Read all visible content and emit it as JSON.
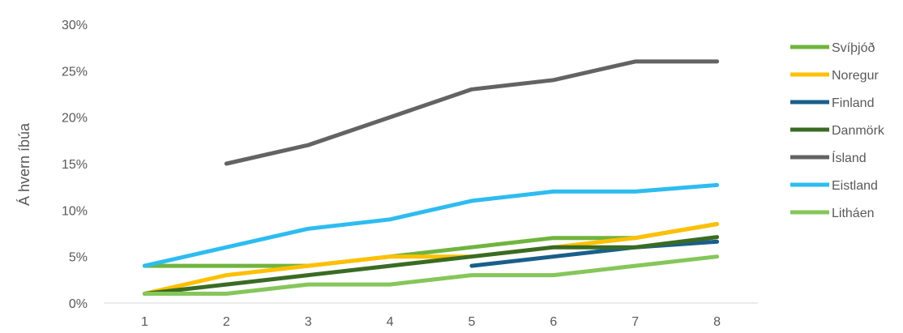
{
  "chart_data": {
    "type": "line",
    "title": "",
    "xlabel": "",
    "ylabel": "Á hvern íbúa",
    "x": [
      1,
      2,
      3,
      4,
      5,
      6,
      7,
      8
    ],
    "ylim": [
      0,
      0.3
    ],
    "yticks": [
      0,
      0.05,
      0.1,
      0.15,
      0.2,
      0.25,
      0.3
    ],
    "ytick_labels": [
      "0%",
      "5%",
      "10%",
      "15%",
      "20%",
      "25%",
      "30%"
    ],
    "xtick_labels": [
      "1",
      "2",
      "3",
      "4",
      "5",
      "6",
      "7",
      "8"
    ],
    "grid": false,
    "legend_position": "right",
    "series": [
      {
        "name": "Svíþjóð",
        "color": "#70b43f",
        "values": [
          0.04,
          0.04,
          0.04,
          0.05,
          0.06,
          0.07,
          0.07,
          0.085
        ]
      },
      {
        "name": "Noregur",
        "color": "#ffc000",
        "values": [
          0.01,
          0.03,
          0.04,
          0.05,
          0.05,
          0.06,
          0.07,
          0.085
        ]
      },
      {
        "name": "Finland",
        "color": "#1a5f8a",
        "values": [
          null,
          null,
          null,
          null,
          0.04,
          0.05,
          0.06,
          0.066
        ]
      },
      {
        "name": "Danmörk",
        "color": "#3a6b24",
        "values": [
          0.01,
          0.02,
          0.03,
          0.04,
          0.05,
          0.06,
          0.06,
          0.071
        ]
      },
      {
        "name": "Ísland",
        "color": "#636363",
        "values": [
          null,
          0.15,
          0.17,
          0.2,
          0.23,
          0.24,
          0.26,
          0.26
        ]
      },
      {
        "name": "Eistland",
        "color": "#2ebcf0",
        "values": [
          0.04,
          0.06,
          0.08,
          0.09,
          0.11,
          0.12,
          0.12,
          0.127
        ]
      },
      {
        "name": "Litháen",
        "color": "#86c65a",
        "values": [
          0.01,
          0.01,
          0.02,
          0.02,
          0.03,
          0.03,
          0.04,
          0.05
        ]
      }
    ]
  }
}
